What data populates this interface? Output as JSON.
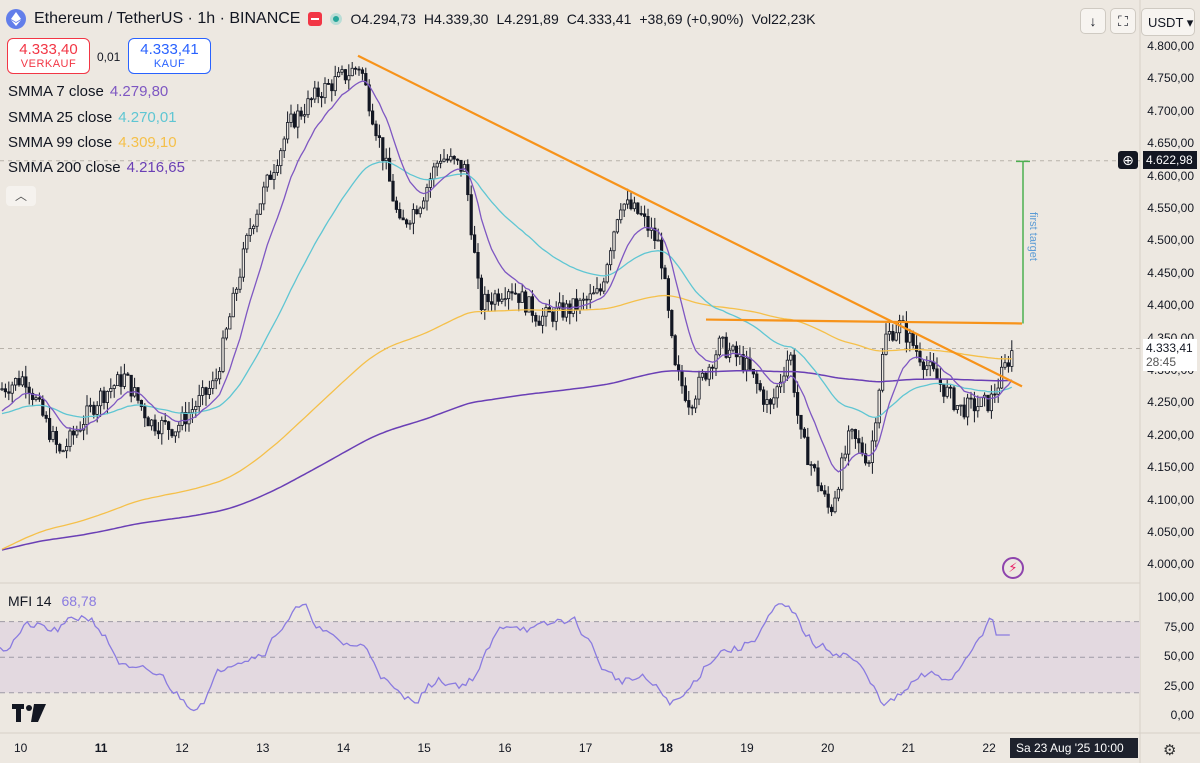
{
  "header": {
    "title": "Ethereum / TetherUS · 1h · BINANCE",
    "ohlc": {
      "open": "O4.294,73",
      "high": "H4.339,30",
      "low": "L4.291,89",
      "close": "C4.333,41",
      "change": "+38,69 (+0,90%)",
      "volume": "Vol22,23K"
    }
  },
  "trade": {
    "sell_price": "4.333,40",
    "sell_label": "VERKAUF",
    "spread": "0,01",
    "buy_price": "4.333,41",
    "buy_label": "KAUF"
  },
  "indicators": [
    {
      "name": "SMMA 7 close",
      "value": "4.279,80",
      "color": "#7e57c2"
    },
    {
      "name": "SMMA 25 close",
      "value": "4.270,01",
      "color": "#5fc6d3"
    },
    {
      "name": "SMMA 99 close",
      "value": "4.309,10",
      "color": "#f5c04a"
    },
    {
      "name": "SMMA 200 close",
      "value": "4.216,65",
      "color": "#6a3fb5"
    }
  ],
  "mfi": {
    "name": "MFI 14",
    "value": "68,78",
    "color": "#8a7be0"
  },
  "currency": "USDT",
  "price_axis": [
    "4.800,00",
    "4.750,00",
    "4.700,00",
    "4.650,00",
    "4.600,00",
    "4.550,00",
    "4.500,00",
    "4.450,00",
    "4.400,00",
    "4.350,00",
    "4.300,00",
    "4.250,00",
    "4.200,00",
    "4.150,00",
    "4.100,00",
    "4.050,00",
    "4.000,00"
  ],
  "mfi_axis": [
    "100,00",
    "75,00",
    "50,00",
    "25,00",
    "0,00"
  ],
  "price_tags": {
    "target": "4.622,98",
    "current": "4.333,41",
    "countdown": "28:45"
  },
  "time_axis": [
    {
      "label": "10",
      "bold": false
    },
    {
      "label": "11",
      "bold": true
    },
    {
      "label": "12",
      "bold": false
    },
    {
      "label": "13",
      "bold": false
    },
    {
      "label": "14",
      "bold": false
    },
    {
      "label": "15",
      "bold": false
    },
    {
      "label": "16",
      "bold": false
    },
    {
      "label": "17",
      "bold": false
    },
    {
      "label": "18",
      "bold": true
    },
    {
      "label": "19",
      "bold": false
    },
    {
      "label": "20",
      "bold": false
    },
    {
      "label": "21",
      "bold": false
    },
    {
      "label": "22",
      "bold": false
    }
  ],
  "date_box": "Sa 23 Aug '25   10:00",
  "annotation": "first target",
  "colors": {
    "trendline": "#f7931a",
    "target": "#4caf50",
    "candle": "#131722",
    "mfi_band": "#e3d9e0"
  }
}
